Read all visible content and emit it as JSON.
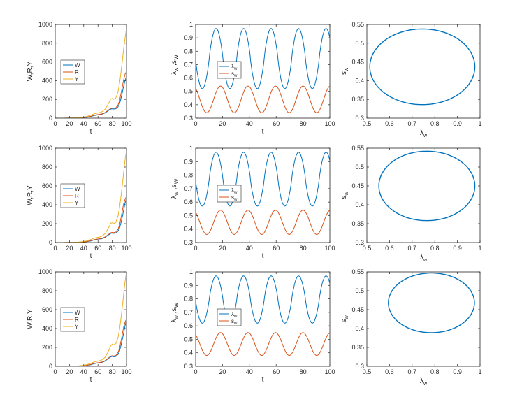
{
  "colors": {
    "blue": "#0072BD",
    "orange": "#D95319",
    "yellow": "#EDB120",
    "axis": "#262626"
  },
  "chart_data": [
    {
      "type": "line",
      "panel": "row1-growth",
      "xlabel": "t",
      "ylabel": "W,R,Y",
      "xlim": [
        0,
        100
      ],
      "ylim": [
        0,
        1000
      ],
      "xticks": [
        "0",
        "20",
        "40",
        "60",
        "80",
        "100"
      ],
      "yticks": [
        "0",
        "200",
        "400",
        "600",
        "800",
        "1000"
      ],
      "legend": {
        "position": "middle-left",
        "entries": [
          "W",
          "R",
          "Y"
        ]
      },
      "x": [
        0,
        10,
        20,
        30,
        40,
        45,
        50,
        55,
        60,
        65,
        70,
        75,
        78,
        80,
        82,
        85,
        88,
        90,
        92,
        94,
        96,
        98,
        100
      ],
      "series": [
        {
          "name": "W",
          "values": [
            0,
            0,
            1,
            2,
            5,
            10,
            17,
            28,
            36,
            40,
            55,
            82,
            97,
            100,
            97,
            100,
            120,
            150,
            200,
            270,
            340,
            400,
            450
          ]
        },
        {
          "name": "R",
          "values": [
            0,
            0,
            1,
            2,
            6,
            12,
            20,
            32,
            38,
            44,
            60,
            88,
            104,
            108,
            105,
            110,
            140,
            180,
            250,
            330,
            410,
            470,
            500
          ]
        },
        {
          "name": "Y",
          "values": [
            0,
            0,
            1,
            3,
            10,
            20,
            32,
            48,
            55,
            65,
            95,
            160,
            205,
            210,
            200,
            215,
            280,
            360,
            470,
            600,
            740,
            860,
            960
          ]
        }
      ]
    },
    {
      "type": "line",
      "panel": "row1-oscillation",
      "xlabel": "t",
      "ylabel": "λ_w,s_w",
      "xlim": [
        0,
        100
      ],
      "ylim": [
        0.3,
        1
      ],
      "xticks": [
        "0",
        "20",
        "40",
        "60",
        "80",
        "100"
      ],
      "yticks": [
        "0.3",
        "0.4",
        "0.5",
        "0.6",
        "0.7",
        "0.8",
        "0.9",
        "1"
      ],
      "legend": {
        "position": "middle-left",
        "entries": [
          "λw",
          "sw"
        ]
      },
      "period": 20.5,
      "series": [
        {
          "name": "λw",
          "min": 0.52,
          "max": 0.97,
          "phase_peak_t": 15.2
        },
        {
          "name": "sw",
          "min": 0.34,
          "max": 0.54,
          "phase_peak_t": 18.5
        }
      ]
    },
    {
      "type": "line",
      "panel": "row1-phase",
      "xlabel": "λw",
      "ylabel": "sw",
      "xlim": [
        0.5,
        1
      ],
      "ylim": [
        0.3,
        0.55
      ],
      "xticks": [
        "0.5",
        "0.6",
        "0.7",
        "0.8",
        "0.9",
        "1"
      ],
      "yticks": [
        "0.3",
        "0.35",
        "0.4",
        "0.45",
        "0.5",
        "0.55"
      ],
      "ellipse": {
        "center_x": 0.745,
        "center_y": 0.437,
        "radius_x": 0.232,
        "radius_y": 0.101
      }
    },
    {
      "type": "line",
      "panel": "row2-growth",
      "xlabel": "t",
      "ylabel": "W,R,Y",
      "xlim": [
        0,
        100
      ],
      "ylim": [
        0,
        1000
      ],
      "xticks": [
        "0",
        "20",
        "40",
        "60",
        "80",
        "100"
      ],
      "yticks": [
        "0",
        "200",
        "400",
        "600",
        "800",
        "1000"
      ],
      "legend": {
        "position": "middle-left",
        "entries": [
          "W",
          "R",
          "Y"
        ]
      },
      "x": [
        0,
        10,
        20,
        30,
        40,
        45,
        50,
        55,
        60,
        65,
        70,
        75,
        78,
        80,
        82,
        85,
        88,
        90,
        92,
        94,
        96,
        98,
        100
      ],
      "series": [
        {
          "name": "W",
          "values": [
            0,
            0,
            1,
            2,
            5,
            10,
            17,
            28,
            36,
            40,
            55,
            82,
            97,
            100,
            97,
            100,
            120,
            150,
            200,
            270,
            340,
            420,
            470
          ]
        },
        {
          "name": "R",
          "values": [
            0,
            0,
            1,
            2,
            6,
            12,
            20,
            32,
            38,
            44,
            60,
            88,
            104,
            108,
            105,
            110,
            140,
            180,
            250,
            330,
            410,
            460,
            490
          ]
        },
        {
          "name": "Y",
          "values": [
            0,
            0,
            1,
            3,
            10,
            20,
            32,
            48,
            55,
            65,
            95,
            160,
            205,
            210,
            200,
            215,
            280,
            360,
            470,
            600,
            740,
            880,
            980
          ]
        }
      ]
    },
    {
      "type": "line",
      "panel": "row2-oscillation",
      "xlabel": "t",
      "ylabel": "λ_w,s_w",
      "xlim": [
        0,
        100
      ],
      "ylim": [
        0.3,
        1
      ],
      "xticks": [
        "0",
        "20",
        "40",
        "60",
        "80",
        "100"
      ],
      "yticks": [
        "0.3",
        "0.4",
        "0.5",
        "0.6",
        "0.7",
        "0.8",
        "0.9",
        "1"
      ],
      "legend": {
        "position": "middle-left",
        "entries": [
          "λw",
          "sw"
        ]
      },
      "period": 20.5,
      "series": [
        {
          "name": "λw",
          "min": 0.57,
          "max": 0.97,
          "phase_peak_t": 15.2
        },
        {
          "name": "sw",
          "min": 0.36,
          "max": 0.54,
          "phase_peak_t": 18.5
        }
      ]
    },
    {
      "type": "line",
      "panel": "row2-phase",
      "xlabel": "λw",
      "ylabel": "sw",
      "xlim": [
        0.5,
        1
      ],
      "ylim": [
        0.3,
        0.55
      ],
      "xticks": [
        "0.5",
        "0.6",
        "0.7",
        "0.8",
        "0.9",
        "1"
      ],
      "yticks": [
        "0.3",
        "0.35",
        "0.4",
        "0.45",
        "0.5",
        "0.55"
      ],
      "ellipse": {
        "center_x": 0.765,
        "center_y": 0.45,
        "radius_x": 0.212,
        "radius_y": 0.092
      }
    },
    {
      "type": "line",
      "panel": "row3-growth",
      "xlabel": "t",
      "ylabel": "W,R,Y",
      "xlim": [
        0,
        100
      ],
      "ylim": [
        0,
        1000
      ],
      "xticks": [
        "0",
        "20",
        "40",
        "60",
        "80",
        "100"
      ],
      "yticks": [
        "0",
        "200",
        "400",
        "600",
        "800",
        "1000"
      ],
      "legend": {
        "position": "middle-left",
        "entries": [
          "W",
          "R",
          "Y"
        ]
      },
      "x": [
        0,
        10,
        20,
        30,
        40,
        45,
        50,
        55,
        60,
        65,
        70,
        75,
        78,
        80,
        82,
        85,
        88,
        90,
        92,
        94,
        96,
        98,
        100
      ],
      "series": [
        {
          "name": "W",
          "values": [
            0,
            0,
            1,
            2,
            5,
            10,
            17,
            28,
            36,
            40,
            55,
            85,
            100,
            105,
            100,
            104,
            125,
            155,
            210,
            280,
            350,
            430,
            490
          ]
        },
        {
          "name": "R",
          "values": [
            0,
            0,
            1,
            2,
            6,
            12,
            20,
            32,
            38,
            44,
            60,
            90,
            108,
            112,
            108,
            114,
            145,
            185,
            255,
            335,
            415,
            470,
            500
          ]
        },
        {
          "name": "Y",
          "values": [
            0,
            0,
            1,
            3,
            10,
            20,
            32,
            48,
            55,
            65,
            95,
            165,
            220,
            235,
            225,
            240,
            300,
            380,
            490,
            620,
            760,
            900,
            1000
          ]
        }
      ]
    },
    {
      "type": "line",
      "panel": "row3-oscillation",
      "xlabel": "t",
      "ylabel": "λ_w,s_w",
      "xlim": [
        0,
        100
      ],
      "ylim": [
        0.3,
        1
      ],
      "xticks": [
        "0",
        "20",
        "40",
        "60",
        "80",
        "100"
      ],
      "yticks": [
        "0.3",
        "0.4",
        "0.5",
        "0.6",
        "0.7",
        "0.8",
        "0.9",
        "1"
      ],
      "legend": {
        "position": "middle-left",
        "entries": [
          "λw",
          "sw"
        ]
      },
      "period": 20.5,
      "series": [
        {
          "name": "λw",
          "min": 0.62,
          "max": 0.97,
          "phase_peak_t": 15.2
        },
        {
          "name": "sw",
          "min": 0.38,
          "max": 0.55,
          "phase_peak_t": 18.5
        }
      ]
    },
    {
      "type": "line",
      "panel": "row3-phase",
      "xlabel": "λw",
      "ylabel": "sw",
      "xlim": [
        0.5,
        1
      ],
      "ylim": [
        0.3,
        0.55
      ],
      "xticks": [
        "0.5",
        "0.6",
        "0.7",
        "0.8",
        "0.9",
        "1"
      ],
      "yticks": [
        "0.3",
        "0.35",
        "0.4",
        "0.45",
        "0.5",
        "0.55"
      ],
      "ellipse": {
        "center_x": 0.785,
        "center_y": 0.468,
        "radius_x": 0.19,
        "radius_y": 0.079
      }
    }
  ]
}
